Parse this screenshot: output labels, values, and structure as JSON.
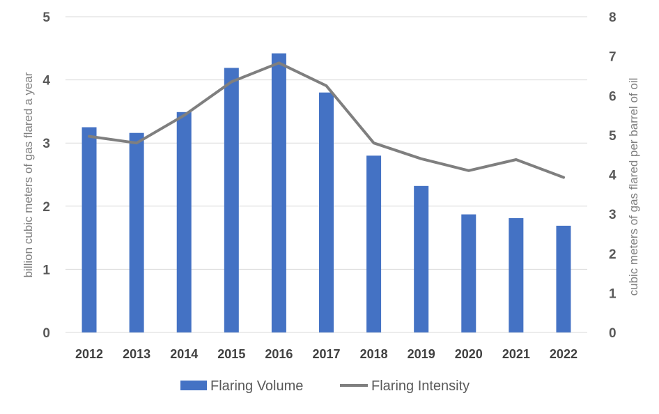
{
  "chart_data": {
    "type": "bar",
    "categories": [
      "2012",
      "2013",
      "2014",
      "2015",
      "2016",
      "2017",
      "2018",
      "2019",
      "2020",
      "2021",
      "2022"
    ],
    "series": [
      {
        "name": "Flaring Volume",
        "type": "bar",
        "axis": "left",
        "color": "#4472C4",
        "values": [
          3.25,
          3.16,
          3.49,
          4.19,
          4.42,
          3.8,
          2.8,
          2.32,
          1.87,
          1.81,
          1.69
        ]
      },
      {
        "name": "Flaring Intensity",
        "type": "line",
        "axis": "right",
        "color": "#7F7F7F",
        "values": [
          4.97,
          4.8,
          5.5,
          6.35,
          6.83,
          6.25,
          4.8,
          4.4,
          4.1,
          4.38,
          3.93
        ]
      }
    ],
    "ylabel": "billion cubic meters of gas flared a year",
    "y2label": "cubic meters of gas flared per barrel of oil",
    "ylim": [
      0,
      5
    ],
    "y2lim": [
      0,
      8
    ],
    "yticks": [
      "0",
      "1",
      "2",
      "3",
      "4",
      "5"
    ],
    "y2ticks": [
      "0",
      "1",
      "2",
      "3",
      "4",
      "5",
      "6",
      "7",
      "8"
    ],
    "grid": true,
    "legend_position": "bottom"
  }
}
